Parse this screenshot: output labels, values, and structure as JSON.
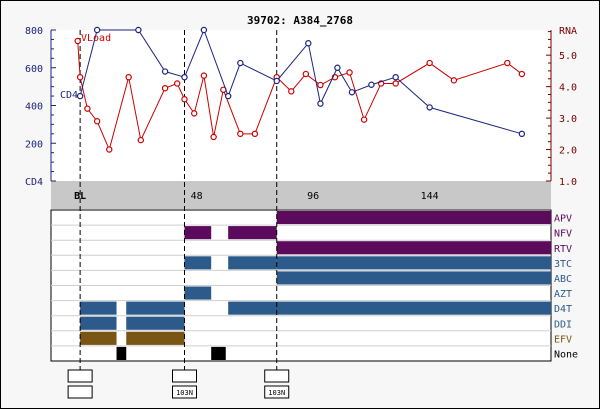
{
  "title": "39702: A384_2768",
  "colors": {
    "cd4": "#1a237e",
    "rna": "#cc0000",
    "left_axis_text": "#1a237e",
    "right_axis_text": "#7a0000",
    "purple": "#5c0a5c",
    "blue": "#2c5a8a",
    "brown": "#7a5514",
    "black": "#000000",
    "grey_band": "#c8c8c8"
  },
  "chart_data": {
    "type": "line",
    "title": "39702: A384_2768",
    "left_axis": {
      "ticks": [
        800,
        600,
        400,
        200
      ],
      "min_label": "CD4",
      "ylim": [
        0,
        800
      ]
    },
    "right_axis": {
      "label": "RNA",
      "ticks": [
        5.0,
        4.0,
        3.0,
        2.0,
        1.0
      ],
      "ylim": [
        1.0,
        5.8
      ]
    },
    "inline_labels": {
      "vload": "VLoad",
      "cd4": "CD4"
    },
    "x_axis": {
      "ticks": [
        "BL",
        "48",
        "96",
        "144"
      ],
      "tick_values": [
        0,
        48,
        96,
        144
      ],
      "xlim": [
        -12,
        194
      ]
    },
    "markers": [
      0,
      43,
      81
    ],
    "series": [
      {
        "name": "CD4",
        "axis": "left",
        "points": [
          [
            0,
            450
          ],
          [
            7,
            800
          ],
          [
            24,
            800
          ],
          [
            35,
            580
          ],
          [
            43,
            550
          ],
          [
            51,
            800
          ],
          [
            61,
            450
          ],
          [
            66,
            625
          ],
          [
            81,
            530
          ],
          [
            94,
            730
          ],
          [
            99,
            410
          ],
          [
            106,
            600
          ],
          [
            112,
            470
          ],
          [
            120,
            510
          ],
          [
            130,
            550
          ],
          [
            144,
            390
          ],
          [
            182,
            250
          ]
        ]
      },
      {
        "name": "RNA",
        "axis": "right",
        "points": [
          [
            -1,
            5.45
          ],
          [
            0,
            4.3
          ],
          [
            3,
            3.3
          ],
          [
            7,
            2.9
          ],
          [
            12,
            2.0
          ],
          [
            20,
            4.3
          ],
          [
            25,
            2.3
          ],
          [
            35,
            3.95
          ],
          [
            40,
            4.1
          ],
          [
            43,
            3.6
          ],
          [
            47,
            3.15
          ],
          [
            51,
            4.35
          ],
          [
            55,
            2.4
          ],
          [
            59,
            3.9
          ],
          [
            66,
            2.5
          ],
          [
            72,
            2.5
          ],
          [
            81,
            4.3
          ],
          [
            87,
            3.85
          ],
          [
            93,
            4.4
          ],
          [
            99,
            4.05
          ],
          [
            105,
            4.3
          ],
          [
            111,
            4.45
          ],
          [
            117,
            2.95
          ],
          [
            124,
            4.1
          ],
          [
            130,
            4.1
          ],
          [
            144,
            4.75
          ],
          [
            154,
            4.2
          ],
          [
            176,
            4.75
          ],
          [
            182,
            4.4
          ]
        ]
      }
    ]
  },
  "drugs": {
    "labels": [
      "APV",
      "NFV",
      "RTV",
      "3TC",
      "ABC",
      "AZT",
      "D4T",
      "DDI",
      "EFV",
      "None"
    ],
    "label_colors": [
      "#5c0a5c",
      "#5c0a5c",
      "#5c0a5c",
      "#2c5a8a",
      "#2c5a8a",
      "#2c5a8a",
      "#2c5a8a",
      "#2c5a8a",
      "#7a5514",
      "#000000"
    ],
    "bars": [
      {
        "row": 0,
        "start": 81,
        "end": 194,
        "color": "purple"
      },
      {
        "row": 1,
        "start": 43,
        "end": 54,
        "color": "purple"
      },
      {
        "row": 1,
        "start": 61,
        "end": 81,
        "color": "purple"
      },
      {
        "row": 2,
        "start": 81,
        "end": 194,
        "color": "purple"
      },
      {
        "row": 3,
        "start": 43,
        "end": 54,
        "color": "blue"
      },
      {
        "row": 3,
        "start": 61,
        "end": 81,
        "color": "blue"
      },
      {
        "row": 3,
        "start": 81,
        "end": 194,
        "color": "blue"
      },
      {
        "row": 4,
        "start": 81,
        "end": 194,
        "color": "blue"
      },
      {
        "row": 5,
        "start": 43,
        "end": 54,
        "color": "blue"
      },
      {
        "row": 6,
        "start": 0,
        "end": 15,
        "color": "blue"
      },
      {
        "row": 6,
        "start": 19,
        "end": 43,
        "color": "blue"
      },
      {
        "row": 6,
        "start": 61,
        "end": 194,
        "color": "blue"
      },
      {
        "row": 7,
        "start": 0,
        "end": 15,
        "color": "blue"
      },
      {
        "row": 7,
        "start": 19,
        "end": 43,
        "color": "blue"
      },
      {
        "row": 8,
        "start": 0,
        "end": 15,
        "color": "brown"
      },
      {
        "row": 8,
        "start": 19,
        "end": 43,
        "color": "brown"
      },
      {
        "row": 9,
        "start": 15,
        "end": 19,
        "color": "black"
      },
      {
        "row": 9,
        "start": 54,
        "end": 60,
        "color": "black"
      }
    ]
  },
  "mutation_boxes": [
    {
      "time": 0,
      "top": "",
      "bottom": ""
    },
    {
      "time": 43,
      "top": "",
      "bottom": "103N"
    },
    {
      "time": 81,
      "top": "",
      "bottom": "103N"
    }
  ]
}
